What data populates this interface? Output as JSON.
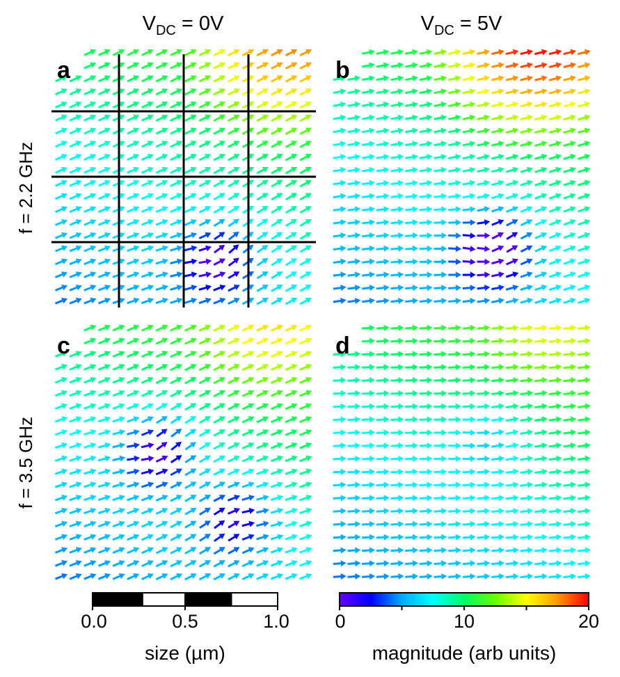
{
  "chart_data": {
    "type": "quiver",
    "column_headers": [
      {
        "main": "V",
        "sub": "DC",
        "rest": " = 0V"
      },
      {
        "main": "V",
        "sub": "DC",
        "rest": " = 5V"
      }
    ],
    "row_labels": [
      "f = 2.2 GHz",
      "f = 3.5 GHz"
    ],
    "panels": [
      {
        "label": "a",
        "voltage_V": 0,
        "frequency_GHz": 2.2,
        "grid_lines": {
          "vertical_um": [
            0.25,
            0.5,
            0.75
          ],
          "horizontal_um": [
            0.25,
            0.5,
            0.75
          ]
        },
        "field": {
          "uniform_direction_deg": 25,
          "hot_spot": {
            "x_um": 0.9,
            "y_um": 0.95,
            "magnitude": 18
          },
          "vortices": [
            {
              "x_um": 0.63,
              "y_um": 0.18,
              "strength": 1.0
            }
          ],
          "corner_magnitude": 9
        }
      },
      {
        "label": "b",
        "voltage_V": 5,
        "frequency_GHz": 2.2,
        "field": {
          "uniform_direction_deg": 12,
          "hot_spot": {
            "x_um": 0.8,
            "y_um": 0.98,
            "magnitude": 20
          },
          "vortices": [
            {
              "x_um": 0.62,
              "y_um": 0.22,
              "strength": 1.3
            }
          ],
          "corner_magnitude": 8
        }
      },
      {
        "label": "c",
        "voltage_V": 0,
        "frequency_GHz": 3.5,
        "field": {
          "uniform_direction_deg": 22,
          "hot_spot": {
            "x_um": 0.85,
            "y_um": 0.97,
            "magnitude": 16
          },
          "vortices": [
            {
              "x_um": 0.4,
              "y_um": 0.5,
              "strength": 1.1
            },
            {
              "x_um": 0.7,
              "y_um": 0.25,
              "strength": -0.9
            }
          ],
          "corner_magnitude": 8
        }
      },
      {
        "label": "d",
        "voltage_V": 5,
        "frequency_GHz": 3.5,
        "field": {
          "uniform_direction_deg": 5,
          "hot_spot": {
            "x_um": 0.85,
            "y_um": 0.97,
            "magnitude": 15
          },
          "vortices": [
            {
              "x_um": 0.6,
              "y_um": 0.55,
              "strength": 0.4
            }
          ],
          "corner_magnitude": 6
        }
      }
    ],
    "size_scale": {
      "label": "size (µm)",
      "ticks": [
        "0.0",
        "0.5",
        "1.0"
      ],
      "range": [
        0,
        1
      ]
    },
    "magnitude_scale": {
      "label": "magnitude (arb units)",
      "ticks": [
        "0",
        "10",
        "20"
      ],
      "range": [
        0,
        20
      ],
      "colormap": [
        "#6600ff",
        "#0000ff",
        "#00aaff",
        "#00ffff",
        "#00ff66",
        "#66ff00",
        "#ffff00",
        "#ff9900",
        "#ff0000"
      ]
    }
  }
}
